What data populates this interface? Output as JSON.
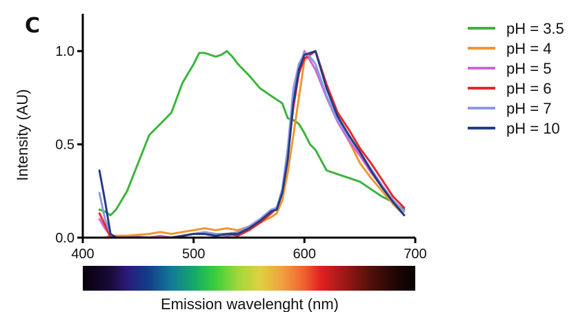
{
  "panel_label": "C",
  "chart_data": {
    "type": "line",
    "title": "",
    "xlabel": "Emission wavelenght (nm)",
    "ylabel": "Intensity (AU)",
    "xlim": [
      400,
      700
    ],
    "ylim": [
      0.0,
      1.2
    ],
    "x_ticks": [
      400,
      500,
      600,
      700
    ],
    "x_tick_labels": [
      "400",
      "500",
      "600",
      "700"
    ],
    "y_ticks": [
      0.0,
      0.5,
      1.0
    ],
    "y_tick_labels": [
      "0.0",
      "0.5",
      "1.0"
    ],
    "grid": false,
    "legend_position": "right",
    "colorbar": {
      "range": [
        400,
        700
      ],
      "stops": [
        {
          "wl": 400,
          "color": "#050008"
        },
        {
          "wl": 425,
          "color": "#1a0a3a"
        },
        {
          "wl": 440,
          "color": "#2a1a7a"
        },
        {
          "wl": 460,
          "color": "#123f8a"
        },
        {
          "wl": 480,
          "color": "#127a9a"
        },
        {
          "wl": 500,
          "color": "#14a86a"
        },
        {
          "wl": 520,
          "color": "#3ccf3c"
        },
        {
          "wl": 540,
          "color": "#a0d83a"
        },
        {
          "wl": 560,
          "color": "#e0d040"
        },
        {
          "wl": 580,
          "color": "#f0a040"
        },
        {
          "wl": 600,
          "color": "#f06030"
        },
        {
          "wl": 615,
          "color": "#e02020"
        },
        {
          "wl": 635,
          "color": "#a01818"
        },
        {
          "wl": 660,
          "color": "#501008"
        },
        {
          "wl": 685,
          "color": "#1a0604"
        },
        {
          "wl": 700,
          "color": "#050302"
        }
      ]
    },
    "series": [
      {
        "name": "pH = 3.5",
        "color": "#3cb43c",
        "x": [
          415,
          420,
          425,
          430,
          440,
          450,
          460,
          470,
          480,
          490,
          500,
          505,
          510,
          515,
          520,
          525,
          530,
          535,
          540,
          550,
          560,
          570,
          575,
          580,
          585,
          590,
          595,
          600,
          605,
          610,
          620,
          630,
          640,
          650,
          660,
          670,
          680,
          690
        ],
        "y": [
          0.15,
          0.14,
          0.12,
          0.15,
          0.25,
          0.4,
          0.55,
          0.61,
          0.67,
          0.83,
          0.93,
          0.99,
          0.99,
          0.98,
          0.97,
          0.98,
          1.0,
          0.97,
          0.93,
          0.87,
          0.8,
          0.76,
          0.74,
          0.72,
          0.64,
          0.63,
          0.61,
          0.56,
          0.5,
          0.47,
          0.36,
          0.34,
          0.32,
          0.3,
          0.26,
          0.22,
          0.19,
          0.15
        ]
      },
      {
        "name": "pH = 4",
        "color": "#f0962d",
        "x": [
          415,
          420,
          425,
          430,
          440,
          450,
          460,
          470,
          480,
          490,
          500,
          510,
          520,
          530,
          540,
          550,
          560,
          570,
          575,
          580,
          585,
          590,
          595,
          600,
          605,
          610,
          620,
          630,
          640,
          650,
          660,
          670,
          680,
          690
        ],
        "y": [
          0.0,
          0.0,
          0.01,
          0.01,
          0.01,
          0.015,
          0.02,
          0.03,
          0.02,
          0.03,
          0.04,
          0.05,
          0.04,
          0.05,
          0.04,
          0.06,
          0.08,
          0.11,
          0.13,
          0.2,
          0.35,
          0.55,
          0.75,
          0.95,
          0.98,
          1.0,
          0.8,
          0.65,
          0.52,
          0.4,
          0.32,
          0.25,
          0.18,
          0.12
        ]
      },
      {
        "name": "pH = 5",
        "color": "#d264d2",
        "x": [
          415,
          420,
          425,
          430,
          440,
          450,
          460,
          470,
          480,
          490,
          500,
          510,
          520,
          530,
          540,
          550,
          560,
          570,
          575,
          580,
          585,
          590,
          595,
          600,
          605,
          610,
          620,
          630,
          640,
          650,
          660,
          670,
          680,
          690
        ],
        "y": [
          0.1,
          0.05,
          0.01,
          0.0,
          0.0,
          0.005,
          0.0,
          0.01,
          0.0,
          0.01,
          0.02,
          0.02,
          0.02,
          0.01,
          0.02,
          0.05,
          0.09,
          0.14,
          0.16,
          0.25,
          0.45,
          0.78,
          0.9,
          1.0,
          0.95,
          0.9,
          0.75,
          0.62,
          0.52,
          0.44,
          0.35,
          0.27,
          0.2,
          0.14
        ]
      },
      {
        "name": "pH = 6",
        "color": "#e6282d",
        "x": [
          415,
          420,
          425,
          430,
          440,
          450,
          460,
          470,
          480,
          490,
          500,
          510,
          520,
          530,
          540,
          550,
          560,
          570,
          575,
          580,
          585,
          590,
          595,
          600,
          605,
          610,
          620,
          630,
          640,
          650,
          660,
          670,
          680,
          690
        ],
        "y": [
          0.13,
          0.07,
          0.0,
          0.0,
          0.0,
          0.0,
          0.0,
          0.0,
          0.0,
          0.01,
          0.02,
          0.02,
          0.01,
          0.02,
          0.01,
          0.04,
          0.08,
          0.13,
          0.16,
          0.25,
          0.45,
          0.7,
          0.88,
          0.96,
          0.98,
          1.0,
          0.82,
          0.67,
          0.58,
          0.48,
          0.4,
          0.31,
          0.22,
          0.16
        ]
      },
      {
        "name": "pH = 7",
        "color": "#8c9be6",
        "x": [
          415,
          420,
          425,
          430,
          440,
          450,
          460,
          470,
          480,
          490,
          500,
          510,
          520,
          530,
          540,
          550,
          560,
          570,
          575,
          580,
          585,
          590,
          595,
          600,
          605,
          610,
          620,
          630,
          640,
          650,
          660,
          670,
          680,
          690
        ],
        "y": [
          0.24,
          0.1,
          0.02,
          0.0,
          0.0,
          0.0,
          0.0,
          0.0,
          0.0,
          0.01,
          0.02,
          0.03,
          0.02,
          0.02,
          0.03,
          0.06,
          0.1,
          0.15,
          0.16,
          0.26,
          0.48,
          0.8,
          0.93,
          0.99,
          0.97,
          0.93,
          0.76,
          0.63,
          0.54,
          0.46,
          0.37,
          0.28,
          0.2,
          0.14
        ]
      },
      {
        "name": "pH = 10",
        "color": "#233c82",
        "x": [
          415,
          420,
          425,
          430,
          440,
          450,
          460,
          470,
          480,
          490,
          500,
          510,
          520,
          530,
          540,
          550,
          560,
          570,
          575,
          580,
          585,
          590,
          595,
          600,
          605,
          610,
          620,
          630,
          640,
          650,
          660,
          670,
          680,
          690
        ],
        "y": [
          0.36,
          0.2,
          0.02,
          0.0,
          0.0,
          0.0,
          0.0,
          0.0,
          0.0,
          0.01,
          0.02,
          0.02,
          0.01,
          0.02,
          0.02,
          0.05,
          0.09,
          0.14,
          0.15,
          0.24,
          0.42,
          0.72,
          0.9,
          0.98,
          0.99,
          1.0,
          0.8,
          0.65,
          0.55,
          0.46,
          0.36,
          0.27,
          0.19,
          0.12
        ]
      }
    ]
  }
}
